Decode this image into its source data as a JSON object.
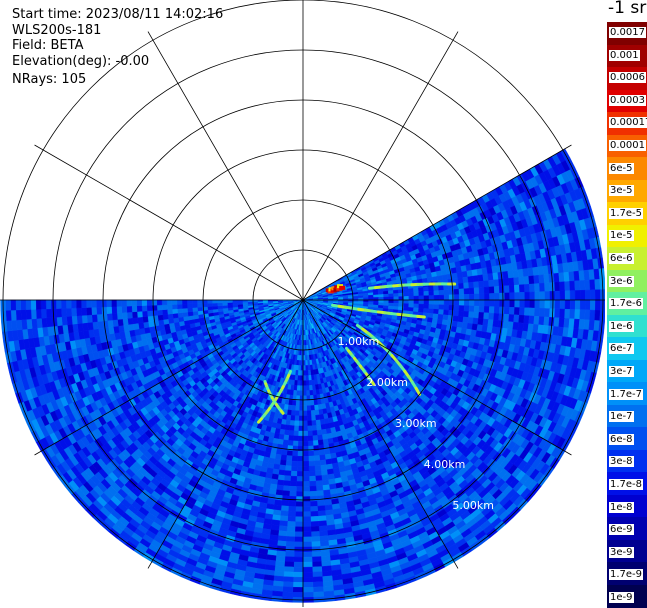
{
  "info": {
    "start_time": "Start time: 2023/08/11 14:02:16",
    "instrument": "WLS200s-181",
    "field": "Field: BETA",
    "elevation": "Elevation(deg): -0.00",
    "nrays": "NRays: 105"
  },
  "colorbar": {
    "unit": "-1 sr",
    "labels": [
      "0.0017",
      "0.001",
      "0.0006",
      "0.0003",
      "0.00017",
      "0.0001",
      "6e-5",
      "3e-5",
      "1.7e-5",
      "1e-5",
      "6e-6",
      "3e-6",
      "1.7e-6",
      "1e-6",
      "6e-7",
      "3e-7",
      "1.7e-7",
      "1e-7",
      "6e-8",
      "3e-8",
      "1.7e-8",
      "1e-8",
      "6e-9",
      "3e-9",
      "1.7e-9",
      "1e-9"
    ],
    "colors": [
      "#800000",
      "#a00000",
      "#c40000",
      "#e00000",
      "#f03000",
      "#f86000",
      "#fc8800",
      "#ffa800",
      "#ffd000",
      "#f0f000",
      "#c8f030",
      "#90f060",
      "#60f0a0",
      "#30e0d0",
      "#10c8f0",
      "#00a8f8",
      "#0090f8",
      "#0070f0",
      "#0050f0",
      "#0030f0",
      "#0010e8",
      "#0000d0",
      "#0000b0",
      "#000090",
      "#000070",
      "#000050"
    ]
  },
  "chart_data": {
    "type": "heatmap",
    "projection": "polar-ppi",
    "range_rings_km": [
      1,
      2,
      3,
      4,
      5
    ],
    "ring_labels": [
      "1.00km",
      "2.00km",
      "3.00km",
      "4.00km",
      "5.00km"
    ],
    "sector_deg": [
      -30,
      180
    ],
    "field": "BETA",
    "features": [
      {
        "kind": "hotspot",
        "az_deg": -19,
        "range_km": [
          0.55,
          0.85
        ],
        "level": "1e-4 to 1e-3"
      },
      {
        "kind": "line",
        "from": {
          "az": -10,
          "r": 1.35
        },
        "to": {
          "az": -6,
          "r": 3.05
        },
        "level": "1e-6"
      },
      {
        "kind": "line",
        "from": {
          "az": 10,
          "r": 0.6
        },
        "to": {
          "az": 8,
          "r": 2.45
        },
        "level": "1e-6"
      },
      {
        "kind": "line",
        "from": {
          "az": 25,
          "r": 1.2
        },
        "to": {
          "az": 39,
          "r": 3.0
        },
        "level": "6e-7"
      },
      {
        "kind": "line",
        "from": {
          "az": 48,
          "r": 1.3
        },
        "to": {
          "az": 50,
          "r": 2.2
        },
        "level": "6e-7"
      },
      {
        "kind": "line",
        "from": {
          "az": 100,
          "r": 1.45
        },
        "to": {
          "az": 110,
          "r": 2.6
        },
        "level": "6e-7"
      },
      {
        "kind": "line",
        "from": {
          "az": 115,
          "r": 1.8
        },
        "to": {
          "az": 100,
          "r": 2.3
        },
        "level": "6e-7"
      }
    ]
  }
}
